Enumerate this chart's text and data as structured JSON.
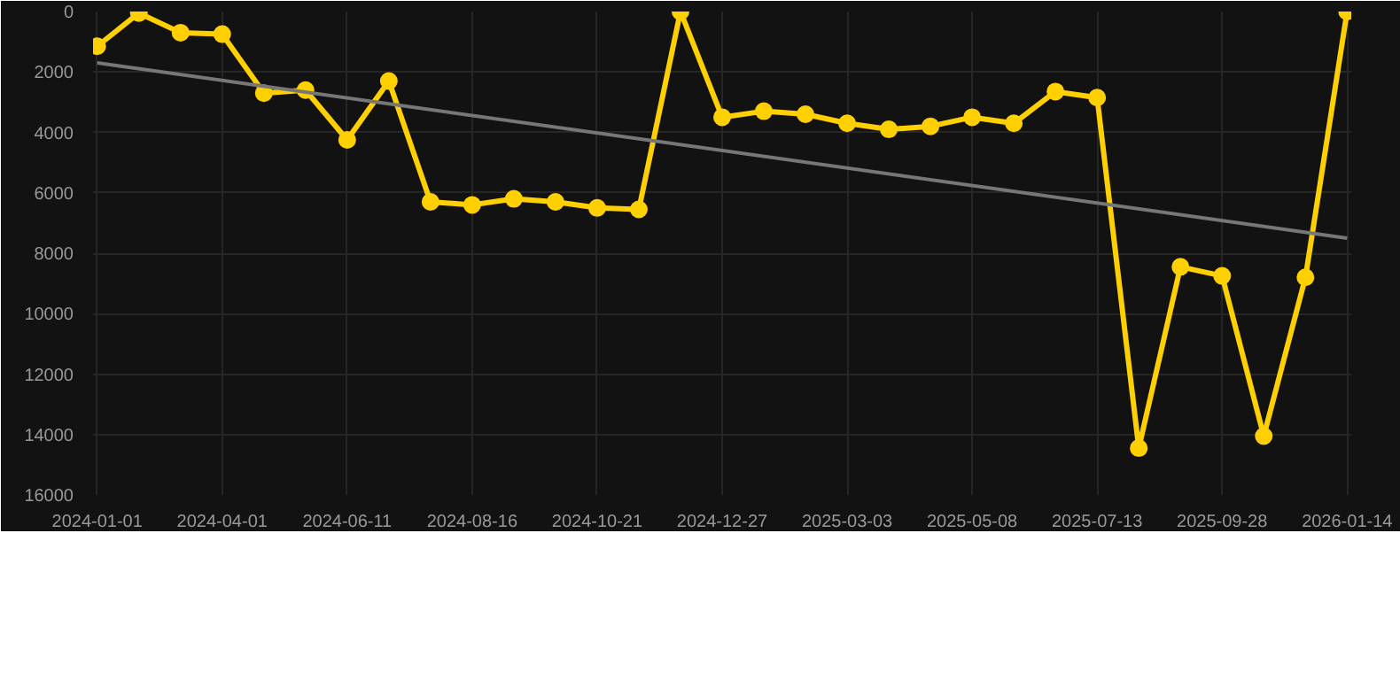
{
  "chart_data": {
    "type": "line",
    "categories": [
      "2024-01-01",
      null,
      null,
      "2024-04-01",
      null,
      null,
      "2024-06-11",
      null,
      null,
      "2024-08-16",
      null,
      null,
      "2024-10-21",
      null,
      null,
      "2024-12-27",
      null,
      null,
      "2025-03-03",
      null,
      null,
      "2025-05-08",
      null,
      null,
      "2025-07-13",
      null,
      null,
      "2025-09-28",
      null,
      null,
      "2026-01-14"
    ],
    "series": [
      {
        "color": "#ffd000",
        "marker": "circle",
        "values": [
          1150,
          50,
          700,
          750,
          2700,
          2600,
          4250,
          2300,
          6300,
          6400,
          6200,
          6300,
          6500,
          6550,
          0,
          3500,
          3300,
          3400,
          3700,
          3900,
          3800,
          3500,
          3700,
          2650,
          2850,
          14450,
          8450,
          8750,
          14050,
          8800,
          0
        ]
      },
      {
        "type": "line",
        "color": "#777777",
        "marker": "none",
        "values": [
          1700,
          null,
          null,
          null,
          null,
          null,
          null,
          null,
          null,
          null,
          null,
          null,
          null,
          null,
          null,
          null,
          null,
          null,
          null,
          null,
          null,
          null,
          null,
          null,
          null,
          null,
          null,
          null,
          null,
          null,
          7500
        ]
      }
    ],
    "ylim": [
      16000,
      0
    ],
    "yticks": [
      0,
      2000,
      4000,
      6000,
      8000,
      10000,
      12000,
      14000,
      16000
    ],
    "grid": true
  }
}
